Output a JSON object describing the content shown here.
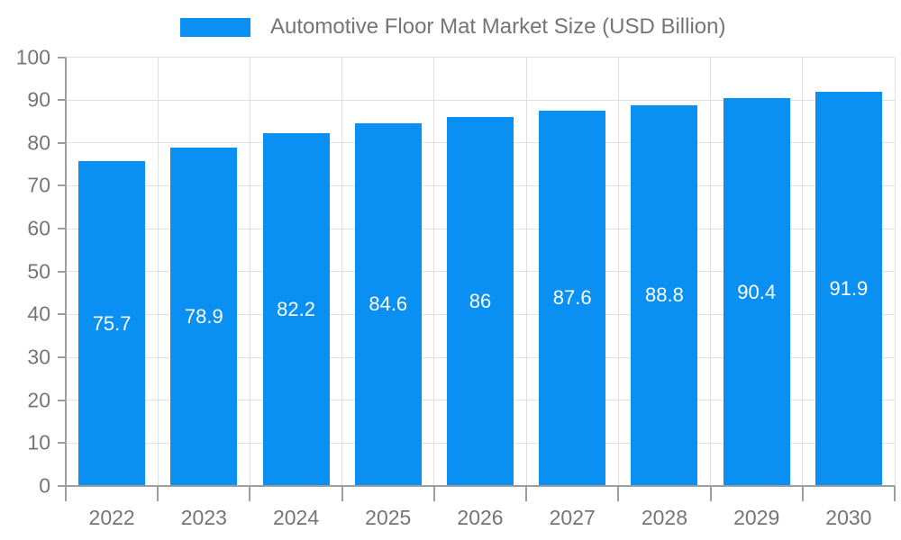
{
  "chart_data": {
    "type": "bar",
    "title": "Automotive Floor Mat Market Size (USD Billion)",
    "categories": [
      "2022",
      "2023",
      "2024",
      "2025",
      "2026",
      "2027",
      "2028",
      "2029",
      "2030"
    ],
    "values": [
      75.7,
      78.9,
      82.2,
      84.6,
      86,
      87.6,
      88.8,
      90.4,
      91.9
    ],
    "value_labels": [
      "75.7",
      "78.9",
      "82.2",
      "84.6",
      "86",
      "87.6",
      "88.8",
      "90.4",
      "91.9"
    ],
    "xlabel": "",
    "ylabel": "",
    "ylim": [
      0,
      100
    ],
    "ytick_step": 10,
    "ytick_labels": [
      "0",
      "10",
      "20",
      "30",
      "40",
      "50",
      "60",
      "70",
      "80",
      "90",
      "100"
    ],
    "grid": "on",
    "legend_position": "top",
    "colors": {
      "bar": "#0a8ff2",
      "axis": "#9e9e9e",
      "grid": "#e0e0e0",
      "text": "#757575",
      "bar_label": "#ffffff"
    }
  }
}
